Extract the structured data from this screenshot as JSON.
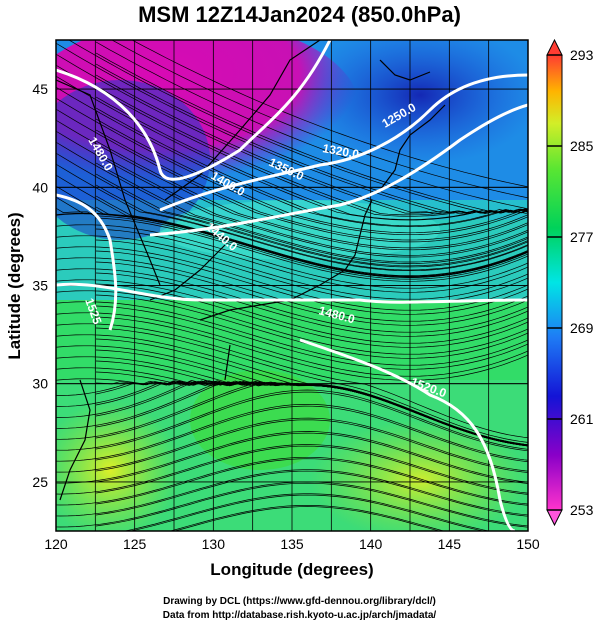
{
  "title": "MSM 12Z14Jan2024 (850.0hPa)",
  "xlabel": "Longitude (degrees)",
  "ylabel": "Latitude (degrees)",
  "x_ticks": [
    "120",
    "125",
    "130",
    "135",
    "140",
    "145",
    "150"
  ],
  "y_ticks": [
    "25",
    "30",
    "35",
    "40",
    "45"
  ],
  "x_range": [
    120,
    150
  ],
  "y_range": [
    22.5,
    47.5
  ],
  "colorbar": {
    "ticks": [
      "293",
      "285",
      "277",
      "269",
      "261",
      "253"
    ],
    "range": [
      253,
      293
    ]
  },
  "contours": [
    {
      "label": "1480.0"
    },
    {
      "label": "1400.0"
    },
    {
      "label": "1350.0"
    },
    {
      "label": "1320.0"
    },
    {
      "label": "1250.0"
    },
    {
      "label": "1440.0"
    },
    {
      "label": "1480.0"
    },
    {
      "label": "1520.0"
    },
    {
      "label": "1525"
    }
  ],
  "credit_line1": "Drawing by DCL (https://www.gfd-dennou.org/library/dcl/)",
  "credit_line2": "Data from http://database.rish.kyoto-u.ac.jp/arch/jmadata/"
}
